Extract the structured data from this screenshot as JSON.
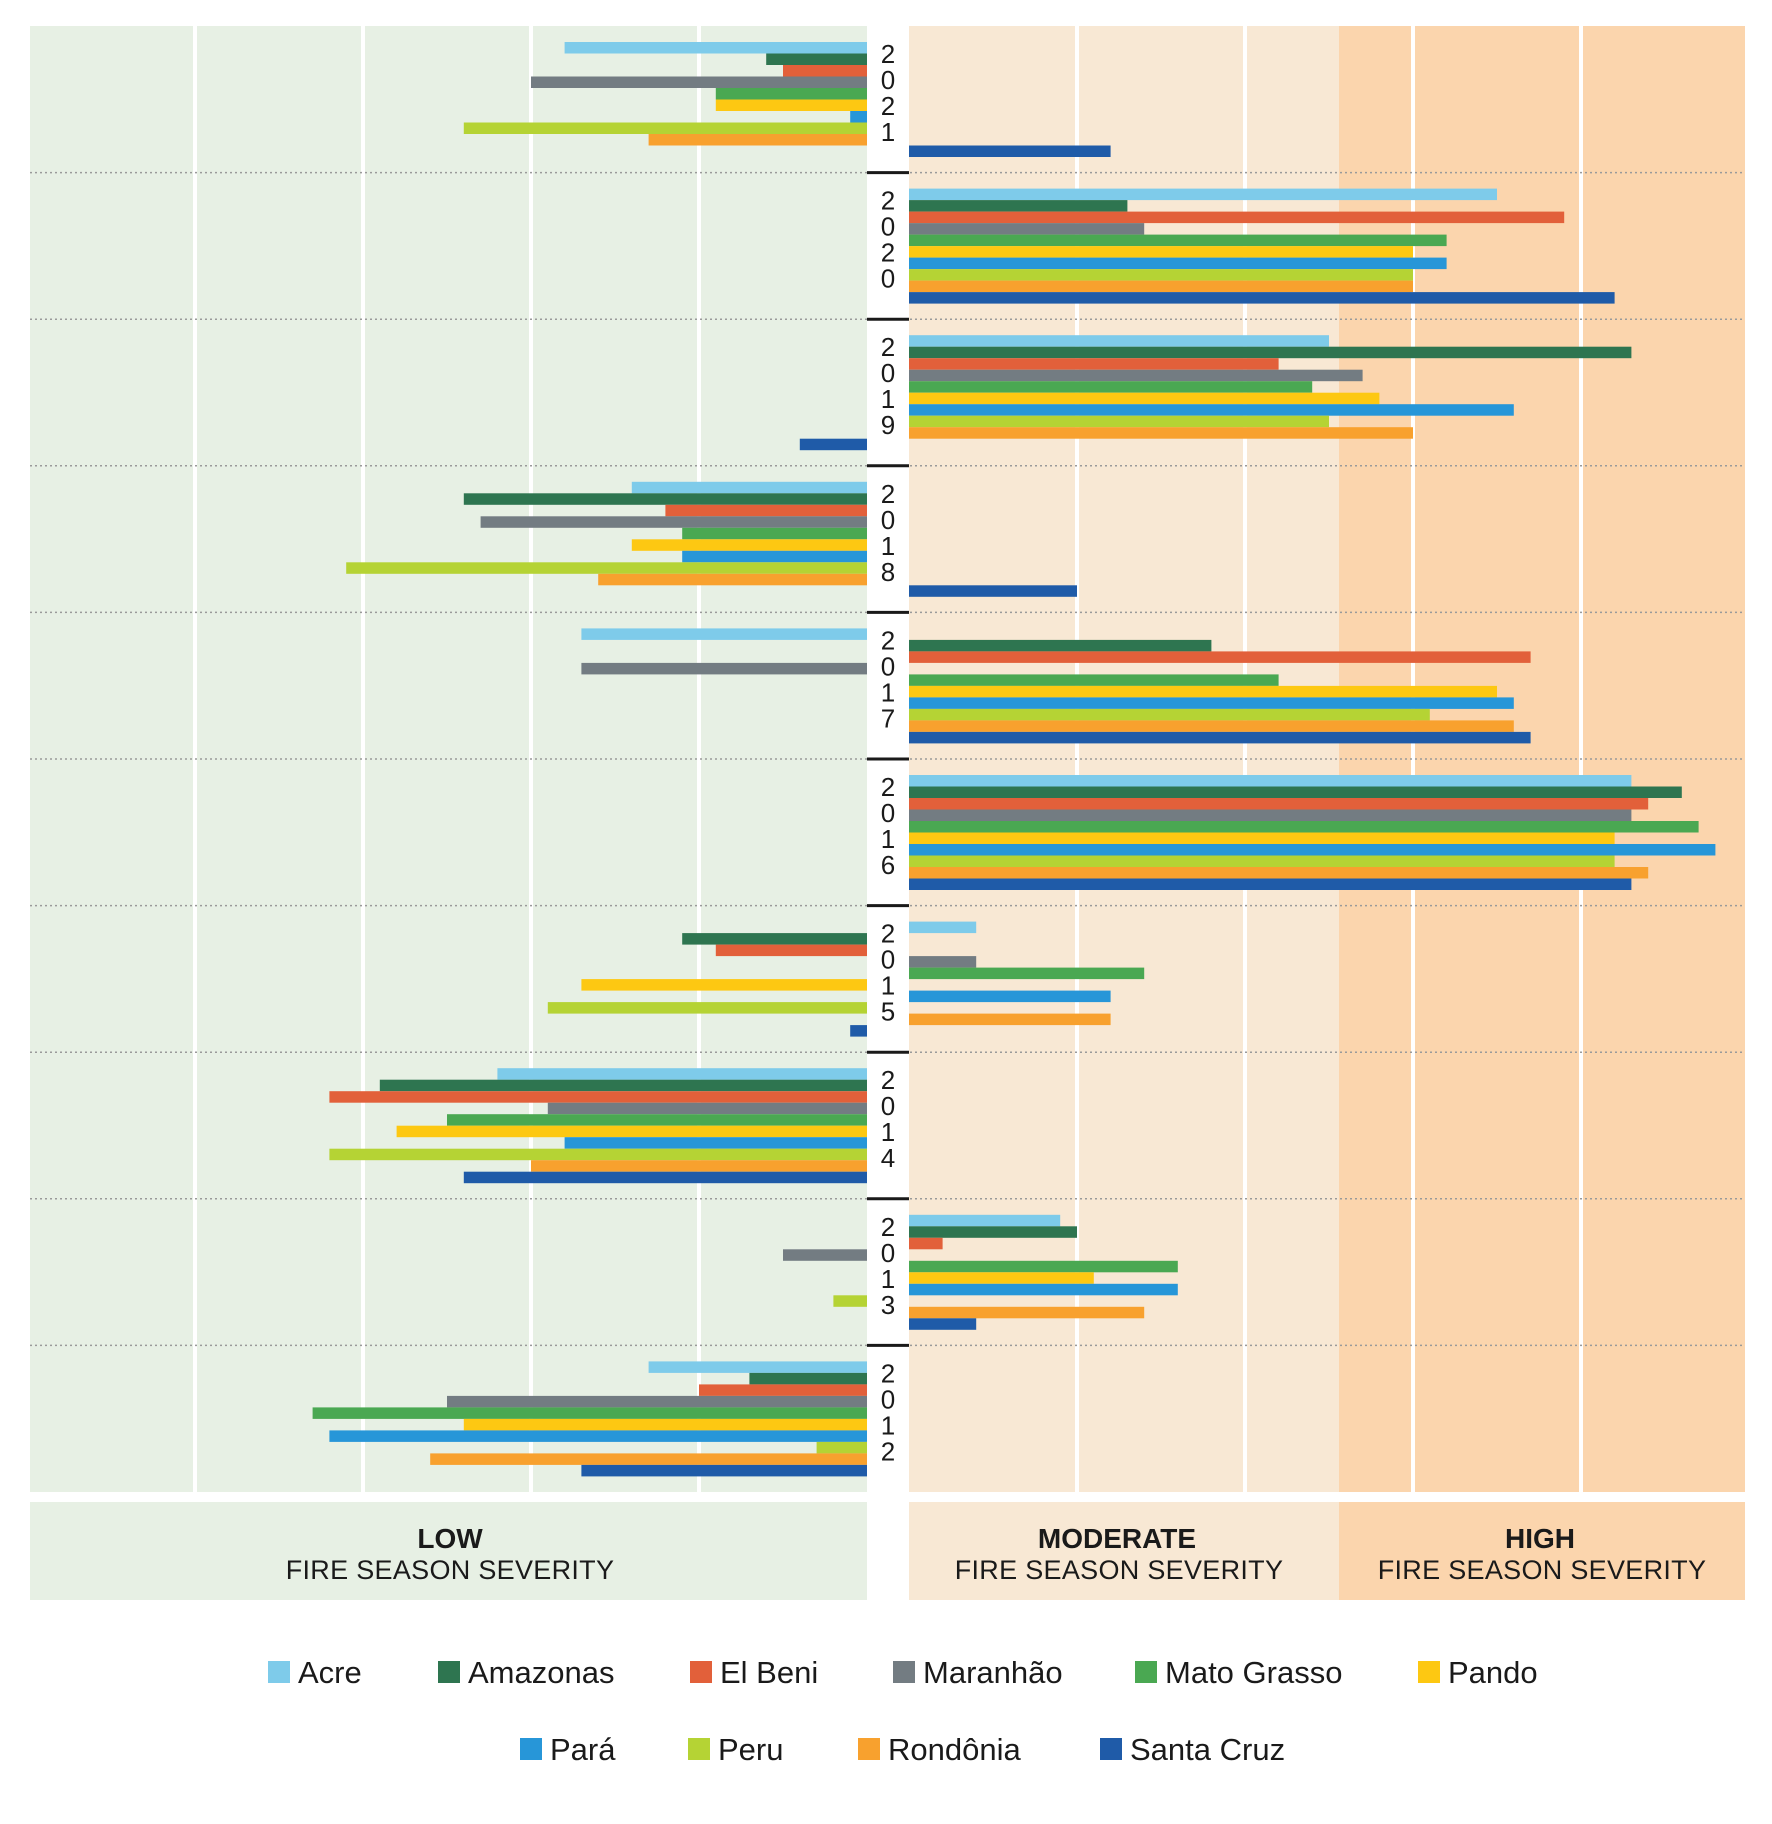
{
  "chart_data": {
    "type": "bar",
    "orientation": "horizontal",
    "value_axis": "fire season severity (relative units, diverging around the low/moderate boundary)",
    "xlim": [
      -5,
      5
    ],
    "grid": true,
    "legend_position": "bottom",
    "zones": [
      {
        "key": "low",
        "title": "LOW",
        "subtitle": "FIRE SEASON SEVERITY",
        "color": "#e7f0e4"
      },
      {
        "key": "moderate",
        "title": "MODERATE",
        "subtitle": "FIRE SEASON SEVERITY",
        "color": "#f8e8d4"
      },
      {
        "key": "high",
        "title": "HIGH",
        "subtitle": "FIRE SEASON SEVERITY",
        "color": "#fbd5ad"
      }
    ],
    "categories": [
      "2021",
      "2020",
      "2019",
      "2018",
      "2017",
      "2016",
      "2015",
      "2014",
      "2013",
      "2012"
    ],
    "series": [
      {
        "name": "Acre",
        "color": "#7ecbea",
        "values": [
          -1.8,
          3.5,
          2.5,
          -1.4,
          -1.7,
          4.3,
          0.4,
          -2.2,
          0.9,
          -1.3
        ]
      },
      {
        "name": "Amazonas",
        "color": "#2e7550",
        "values": [
          -0.6,
          1.3,
          4.3,
          -2.4,
          1.8,
          4.6,
          -1.1,
          -2.9,
          1.0,
          -0.7
        ]
      },
      {
        "name": "El Beni",
        "color": "#e2603a",
        "values": [
          -0.5,
          3.9,
          2.2,
          -1.2,
          3.7,
          4.4,
          -0.9,
          -3.2,
          0.2,
          -1.0
        ]
      },
      {
        "name": "Maranhão",
        "color": "#737c82",
        "values": [
          -2.0,
          1.4,
          2.7,
          -2.3,
          -1.7,
          4.3,
          0.4,
          -1.9,
          -0.5,
          -2.5
        ]
      },
      {
        "name": "Mato Grasso",
        "color": "#4aa852",
        "values": [
          -0.9,
          3.2,
          2.4,
          -1.1,
          2.2,
          4.7,
          1.4,
          -2.5,
          1.6,
          -3.3
        ]
      },
      {
        "name": "Pando",
        "color": "#fdc812",
        "values": [
          -0.9,
          3.0,
          2.8,
          -1.4,
          3.5,
          4.2,
          -1.7,
          -2.8,
          1.1,
          -2.4
        ]
      },
      {
        "name": "Pará",
        "color": "#2796d8",
        "values": [
          -0.1,
          3.2,
          3.6,
          -1.1,
          3.6,
          4.8,
          1.2,
          -1.8,
          1.6,
          -3.2
        ]
      },
      {
        "name": "Peru",
        "color": "#b5d334",
        "values": [
          -2.4,
          3.0,
          2.5,
          -3.1,
          3.1,
          4.2,
          -1.9,
          -3.2,
          -0.2,
          -0.3
        ]
      },
      {
        "name": "Rondônia",
        "color": "#f8a12e",
        "values": [
          -1.3,
          3.0,
          3.0,
          -1.6,
          3.6,
          4.4,
          1.2,
          -2.0,
          1.4,
          -2.6
        ]
      },
      {
        "name": "Santa Cruz",
        "color": "#1f5ba8",
        "values": [
          1.2,
          4.2,
          -0.4,
          1.0,
          3.7,
          4.3,
          -0.1,
          -2.4,
          0.4,
          -1.7
        ]
      }
    ]
  }
}
